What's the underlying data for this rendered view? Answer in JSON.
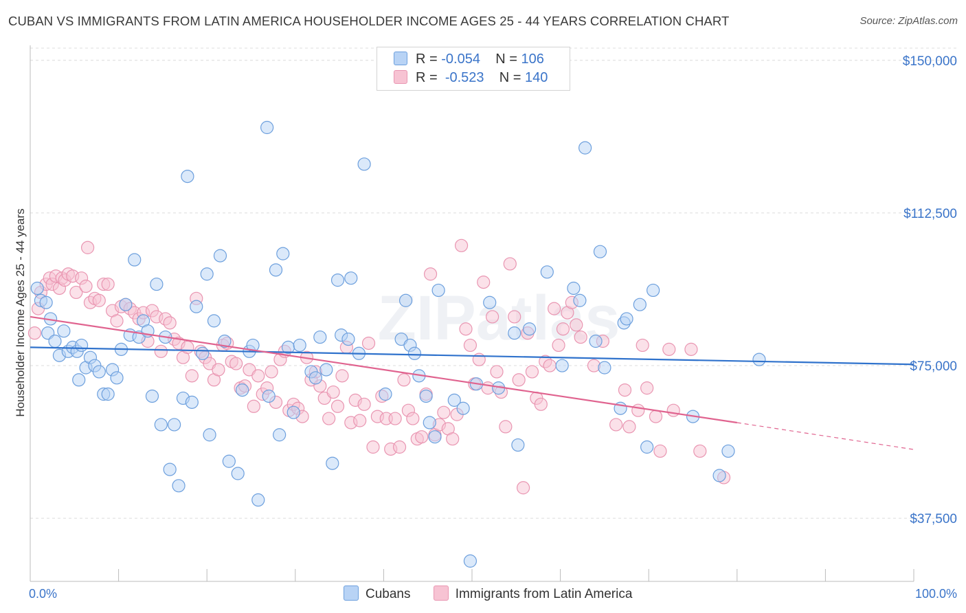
{
  "title": "CUBAN VS IMMIGRANTS FROM LATIN AMERICA HOUSEHOLDER INCOME AGES 25 - 44 YEARS CORRELATION CHART",
  "source": "Source: ZipAtlas.com",
  "watermark": "ZIPatlas",
  "legend": {
    "rows": [
      {
        "r_label": "R =",
        "r_value": "-0.054",
        "n_label": "N =",
        "n_value": "106"
      },
      {
        "r_label": "R =",
        "r_value": "-0.523",
        "n_label": "N =",
        "n_value": "140"
      }
    ]
  },
  "bottom_legend": [
    "Cubans",
    "Immigrants from Latin America"
  ],
  "colors": {
    "cubans_fill": "#b8d3f5",
    "cubans_stroke": "#6c9fdd",
    "cubans_line": "#2f72cc",
    "latam_fill": "#f7c3d3",
    "latam_stroke": "#e995b1",
    "latam_line": "#e0638f",
    "tick_label": "#3a74c9"
  },
  "chart_data": {
    "type": "scatter",
    "title": "CUBAN VS IMMIGRANTS FROM LATIN AMERICA HOUSEHOLDER INCOME AGES 25 - 44 YEARS CORRELATION CHART",
    "xlabel": "",
    "ylabel": "Householder Income Ages 25 - 44 years",
    "xlim": [
      0,
      100
    ],
    "ylim": [
      22000,
      153000
    ],
    "x_tick_labels": [
      "0.0%",
      "100.0%"
    ],
    "y_ticks": [
      37500,
      75000,
      112500,
      150000
    ],
    "y_tick_labels": [
      "$37,500",
      "$75,000",
      "$112,500",
      "$150,000"
    ],
    "grid": "horizontal dashed",
    "legend_position": "top-center",
    "series": [
      {
        "name": "Cubans",
        "R": -0.054,
        "N": 106,
        "trend": {
          "x": [
            0,
            100
          ],
          "y": [
            79500,
            75300
          ]
        },
        "points": [
          [
            0.8,
            94000
          ],
          [
            1.2,
            91000
          ],
          [
            1.8,
            90500
          ],
          [
            2.0,
            83000
          ],
          [
            2.3,
            86500
          ],
          [
            2.8,
            81000
          ],
          [
            3.3,
            77500
          ],
          [
            3.8,
            83500
          ],
          [
            4.3,
            78500
          ],
          [
            4.8,
            79500
          ],
          [
            5.3,
            78500
          ],
          [
            5.5,
            71500
          ],
          [
            5.8,
            80000
          ],
          [
            6.3,
            74500
          ],
          [
            6.8,
            77000
          ],
          [
            7.3,
            75000
          ],
          [
            7.8,
            73500
          ],
          [
            8.3,
            68000
          ],
          [
            8.8,
            68000
          ],
          [
            9.3,
            74000
          ],
          [
            9.8,
            72000
          ],
          [
            10.3,
            79000
          ],
          [
            10.8,
            90000
          ],
          [
            11.3,
            82500
          ],
          [
            11.8,
            101000
          ],
          [
            12.3,
            82000
          ],
          [
            12.8,
            86000
          ],
          [
            13.3,
            83500
          ],
          [
            13.8,
            67500
          ],
          [
            14.3,
            95000
          ],
          [
            14.8,
            60500
          ],
          [
            15.3,
            82000
          ],
          [
            15.8,
            49500
          ],
          [
            16.3,
            60500
          ],
          [
            16.8,
            45500
          ],
          [
            17.3,
            67000
          ],
          [
            17.8,
            121500
          ],
          [
            18.3,
            66000
          ],
          [
            18.8,
            89500
          ],
          [
            19.5,
            78000
          ],
          [
            20.0,
            97500
          ],
          [
            20.3,
            58000
          ],
          [
            20.8,
            86000
          ],
          [
            21.5,
            102000
          ],
          [
            22.0,
            81000
          ],
          [
            22.5,
            51500
          ],
          [
            23.5,
            48500
          ],
          [
            24.0,
            69000
          ],
          [
            24.8,
            78500
          ],
          [
            25.2,
            80000
          ],
          [
            25.8,
            42000
          ],
          [
            26.8,
            133500
          ],
          [
            27.0,
            67500
          ],
          [
            27.8,
            98500
          ],
          [
            28.2,
            58000
          ],
          [
            28.6,
            102500
          ],
          [
            29.2,
            79500
          ],
          [
            29.8,
            63500
          ],
          [
            30.5,
            80000
          ],
          [
            31.8,
            73500
          ],
          [
            32.3,
            72000
          ],
          [
            32.8,
            82000
          ],
          [
            33.5,
            74000
          ],
          [
            34.2,
            51000
          ],
          [
            34.8,
            96000
          ],
          [
            35.2,
            82500
          ],
          [
            36.0,
            81500
          ],
          [
            36.3,
            96500
          ],
          [
            37.2,
            78000
          ],
          [
            37.8,
            124500
          ],
          [
            40.2,
            68000
          ],
          [
            42.0,
            81500
          ],
          [
            42.5,
            91000
          ],
          [
            43.0,
            80000
          ],
          [
            43.5,
            78000
          ],
          [
            44.0,
            72500
          ],
          [
            44.8,
            67500
          ],
          [
            45.2,
            61000
          ],
          [
            45.8,
            57500
          ],
          [
            46.2,
            93500
          ],
          [
            48.0,
            66500
          ],
          [
            49.0,
            64500
          ],
          [
            49.8,
            27000
          ],
          [
            50.5,
            70500
          ],
          [
            52.0,
            90500
          ],
          [
            53.0,
            69500
          ],
          [
            54.8,
            83000
          ],
          [
            55.2,
            55500
          ],
          [
            56.5,
            84000
          ],
          [
            58.5,
            98000
          ],
          [
            60.2,
            75000
          ],
          [
            61.5,
            94000
          ],
          [
            62.2,
            91000
          ],
          [
            62.8,
            128500
          ],
          [
            64.0,
            81000
          ],
          [
            64.5,
            103000
          ],
          [
            65.0,
            74500
          ],
          [
            66.8,
            64500
          ],
          [
            67.2,
            85500
          ],
          [
            67.5,
            86500
          ],
          [
            69.0,
            90000
          ],
          [
            69.8,
            55000
          ],
          [
            70.5,
            93500
          ],
          [
            75.0,
            62500
          ],
          [
            78.0,
            48000
          ],
          [
            79.0,
            54000
          ],
          [
            82.5,
            76500
          ]
        ]
      },
      {
        "name": "Immigrants from Latin America",
        "R": -0.523,
        "N": 140,
        "trend": {
          "x": [
            0,
            80
          ],
          "y": [
            87000,
            61000
          ],
          "dashed_to": {
            "x": 100,
            "y": 54400
          }
        },
        "points": [
          [
            0.5,
            83000
          ],
          [
            0.9,
            89000
          ],
          [
            1.2,
            93000
          ],
          [
            1.8,
            95000
          ],
          [
            2.2,
            96500
          ],
          [
            2.5,
            95000
          ],
          [
            2.9,
            97000
          ],
          [
            3.3,
            94000
          ],
          [
            3.6,
            96500
          ],
          [
            3.9,
            96000
          ],
          [
            4.3,
            97500
          ],
          [
            4.8,
            97000
          ],
          [
            5.2,
            93000
          ],
          [
            5.8,
            96500
          ],
          [
            6.3,
            94500
          ],
          [
            6.5,
            104000
          ],
          [
            6.8,
            90500
          ],
          [
            7.3,
            91500
          ],
          [
            7.8,
            91000
          ],
          [
            8.3,
            95000
          ],
          [
            8.8,
            95000
          ],
          [
            9.3,
            88500
          ],
          [
            9.8,
            86000
          ],
          [
            10.3,
            89500
          ],
          [
            10.8,
            90000
          ],
          [
            11.3,
            89000
          ],
          [
            11.8,
            88000
          ],
          [
            12.3,
            86500
          ],
          [
            12.8,
            88000
          ],
          [
            13.3,
            81000
          ],
          [
            13.8,
            88500
          ],
          [
            14.3,
            87000
          ],
          [
            14.8,
            78500
          ],
          [
            15.3,
            86500
          ],
          [
            15.8,
            85500
          ],
          [
            16.3,
            81500
          ],
          [
            16.8,
            80500
          ],
          [
            17.3,
            77000
          ],
          [
            17.8,
            79500
          ],
          [
            18.3,
            72500
          ],
          [
            18.8,
            91500
          ],
          [
            19.3,
            78500
          ],
          [
            19.8,
            77000
          ],
          [
            20.3,
            75500
          ],
          [
            20.8,
            71500
          ],
          [
            21.3,
            74000
          ],
          [
            21.8,
            80000
          ],
          [
            22.3,
            80500
          ],
          [
            22.8,
            76000
          ],
          [
            23.3,
            75500
          ],
          [
            23.8,
            69500
          ],
          [
            24.3,
            70000
          ],
          [
            24.8,
            74000
          ],
          [
            25.3,
            65000
          ],
          [
            25.8,
            72500
          ],
          [
            26.3,
            68000
          ],
          [
            26.8,
            69500
          ],
          [
            27.3,
            73500
          ],
          [
            27.8,
            66000
          ],
          [
            28.3,
            76500
          ],
          [
            28.8,
            78500
          ],
          [
            29.3,
            64000
          ],
          [
            29.8,
            65500
          ],
          [
            30.3,
            64500
          ],
          [
            30.8,
            62500
          ],
          [
            31.3,
            77000
          ],
          [
            31.8,
            71500
          ],
          [
            32.3,
            73500
          ],
          [
            32.8,
            70000
          ],
          [
            33.3,
            67000
          ],
          [
            33.8,
            62000
          ],
          [
            34.3,
            68500
          ],
          [
            34.8,
            65000
          ],
          [
            35.3,
            72500
          ],
          [
            35.8,
            79500
          ],
          [
            36.3,
            61000
          ],
          [
            36.8,
            66500
          ],
          [
            37.3,
            61500
          ],
          [
            37.8,
            65500
          ],
          [
            38.3,
            80500
          ],
          [
            38.8,
            55000
          ],
          [
            39.3,
            62500
          ],
          [
            39.8,
            67500
          ],
          [
            40.3,
            62000
          ],
          [
            40.8,
            54500
          ],
          [
            41.3,
            62000
          ],
          [
            41.8,
            55000
          ],
          [
            42.3,
            71500
          ],
          [
            42.8,
            64000
          ],
          [
            43.3,
            62000
          ],
          [
            43.8,
            57000
          ],
          [
            44.3,
            57500
          ],
          [
            44.8,
            68000
          ],
          [
            45.3,
            97500
          ],
          [
            45.8,
            58000
          ],
          [
            46.3,
            60500
          ],
          [
            46.8,
            63500
          ],
          [
            47.3,
            59500
          ],
          [
            47.8,
            57000
          ],
          [
            48.3,
            63000
          ],
          [
            48.8,
            104500
          ],
          [
            49.3,
            84000
          ],
          [
            49.8,
            80000
          ],
          [
            50.3,
            70500
          ],
          [
            50.8,
            76500
          ],
          [
            51.3,
            95500
          ],
          [
            51.8,
            69500
          ],
          [
            52.3,
            87000
          ],
          [
            52.8,
            73500
          ],
          [
            53.3,
            68500
          ],
          [
            53.8,
            60000
          ],
          [
            54.3,
            100000
          ],
          [
            54.8,
            87000
          ],
          [
            55.3,
            71500
          ],
          [
            55.8,
            45000
          ],
          [
            56.3,
            83000
          ],
          [
            56.8,
            73500
          ],
          [
            57.3,
            67000
          ],
          [
            57.8,
            65500
          ],
          [
            58.3,
            76000
          ],
          [
            58.8,
            75000
          ],
          [
            59.3,
            89000
          ],
          [
            59.8,
            80000
          ],
          [
            60.3,
            84000
          ],
          [
            60.8,
            88000
          ],
          [
            61.3,
            90500
          ],
          [
            61.8,
            85000
          ],
          [
            62.3,
            82000
          ],
          [
            63.8,
            75000
          ],
          [
            64.8,
            81000
          ],
          [
            66.3,
            60500
          ],
          [
            67.3,
            69000
          ],
          [
            67.8,
            60000
          ],
          [
            68.8,
            64000
          ],
          [
            69.3,
            80000
          ],
          [
            69.8,
            69500
          ],
          [
            70.8,
            62500
          ],
          [
            71.3,
            54000
          ],
          [
            72.3,
            79000
          ],
          [
            72.8,
            64000
          ],
          [
            74.8,
            79000
          ],
          [
            75.8,
            54000
          ],
          [
            78.5,
            47500
          ]
        ]
      }
    ]
  }
}
